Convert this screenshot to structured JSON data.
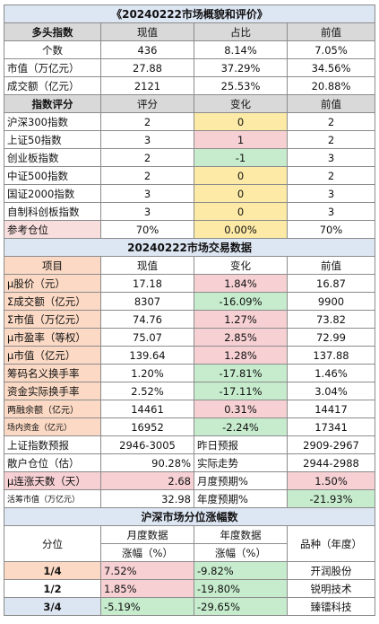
{
  "t1": {
    "title": "《20240222市场概貌和评价》",
    "headers": [
      "多头指数",
      "现值",
      "占比",
      "前值"
    ],
    "rows": [
      [
        "个数",
        "436",
        "8.14%",
        "7.05%"
      ],
      [
        "市值（万亿元）",
        "27.88",
        "37.29%",
        "34.56%"
      ],
      [
        "成交额（亿元）",
        "2121",
        "25.53%",
        "20.88%"
      ]
    ]
  },
  "t2": {
    "headers": [
      "指数评分",
      "评分",
      "变化",
      "前值"
    ],
    "rows": [
      [
        "沪深300指数",
        "2",
        "0",
        "2"
      ],
      [
        "上证50指数",
        "3",
        "1",
        "2"
      ],
      [
        "创业板指数",
        "2",
        "-1",
        "3"
      ],
      [
        "中证500指数",
        "2",
        "0",
        "2"
      ],
      [
        "国证2000指数",
        "3",
        "0",
        "3"
      ],
      [
        "自制科创板指数",
        "3",
        "0",
        "3"
      ],
      [
        "参考仓位",
        "70%",
        "0.00%",
        "70%"
      ]
    ]
  },
  "t3": {
    "title": "20240222市场交易数据",
    "headers": [
      "项目",
      "现值",
      "变化",
      "前值"
    ],
    "rows": [
      [
        "μ股价（元）",
        "17.18",
        "1.84%",
        "16.87"
      ],
      [
        "Σ成交额（亿元）",
        "8307",
        "-16.09%",
        "9900"
      ],
      [
        "Σ市值（万亿元）",
        "74.76",
        "1.27%",
        "73.82"
      ],
      [
        "μ市盈率（等权）",
        "75.07",
        "2.85%",
        "72.99"
      ],
      [
        "μ市值（亿元）",
        "139.64",
        "1.28%",
        "137.88"
      ],
      [
        "筹码名义换手率",
        "1.20%",
        "-17.81%",
        "1.46%"
      ],
      [
        "资金实际换手率",
        "2.52%",
        "-17.11%",
        "3.04%"
      ],
      [
        "两融余额（亿元）",
        "14461",
        "0.31%",
        "14417"
      ],
      [
        "场内资金（亿元）",
        "16952",
        "-2.24%",
        "17341"
      ]
    ],
    "extra": [
      [
        "上证指数预报",
        "2946-3005",
        "昨日预报",
        "2909-2967"
      ],
      [
        "散户仓位（估）",
        "90.28%",
        "实际走势",
        "2944-2988"
      ],
      [
        "μ连涨天数（天）",
        "2.68",
        "月度预期%",
        "1.50%"
      ],
      [
        "活筹市值（万亿元）",
        "32.98",
        "年度预期%",
        "-21.93%"
      ]
    ]
  },
  "t4": {
    "title": "沪深市场分位涨幅数",
    "col1": "分位",
    "col2": "月度数据",
    "col3": "年度数据",
    "col4": "品种（年度）",
    "sub2": "涨幅（%）",
    "sub3": "涨幅（%）",
    "rows": [
      [
        "1/4",
        "7.52%",
        "-9.82%",
        "开润股份"
      ],
      [
        "1/2",
        "1.85%",
        "-19.80%",
        "锐明技术"
      ],
      [
        "3/4",
        "-5.19%",
        "-29.65%",
        "臻镭科技"
      ]
    ]
  }
}
